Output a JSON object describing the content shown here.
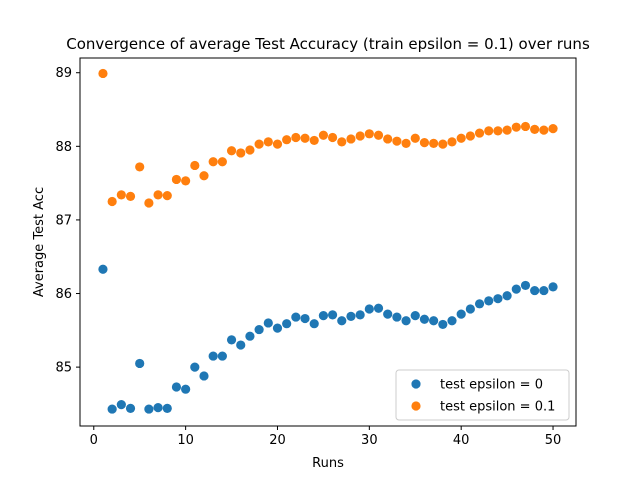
{
  "chart_data": {
    "type": "scatter",
    "title": "Convergence of average Test Accuracy (train epsilon = 0.1) over runs",
    "xlabel": "Runs",
    "ylabel": "Average Test Acc",
    "xlim": [
      -1.5,
      52.5
    ],
    "ylim": [
      84.2,
      89.2
    ],
    "xticks": [
      0,
      10,
      20,
      30,
      40,
      50
    ],
    "yticks": [
      85,
      86,
      87,
      88,
      89
    ],
    "grid": false,
    "legend_position": "lower-right",
    "x": [
      1,
      2,
      3,
      4,
      5,
      6,
      7,
      8,
      9,
      10,
      11,
      12,
      13,
      14,
      15,
      16,
      17,
      18,
      19,
      20,
      21,
      22,
      23,
      24,
      25,
      26,
      27,
      28,
      29,
      30,
      31,
      32,
      33,
      34,
      35,
      36,
      37,
      38,
      39,
      40,
      41,
      42,
      43,
      44,
      45,
      46,
      47,
      48,
      49,
      50
    ],
    "series": [
      {
        "name": "test epsilon = 0",
        "color": "#1f77b4",
        "values": [
          86.33,
          84.43,
          84.49,
          84.44,
          85.05,
          84.43,
          84.45,
          84.44,
          84.73,
          84.7,
          85.0,
          84.88,
          85.15,
          85.15,
          85.37,
          85.3,
          85.42,
          85.51,
          85.6,
          85.53,
          85.59,
          85.68,
          85.66,
          85.59,
          85.7,
          85.71,
          85.63,
          85.69,
          85.71,
          85.79,
          85.8,
          85.72,
          85.68,
          85.63,
          85.7,
          85.65,
          85.63,
          85.58,
          85.63,
          85.72,
          85.79,
          85.86,
          85.9,
          85.93,
          85.97,
          86.06,
          86.11,
          86.04,
          86.04,
          86.09
        ]
      },
      {
        "name": "test epsilon = 0.1",
        "color": "#ff7f0e",
        "values": [
          88.99,
          87.25,
          87.34,
          87.32,
          87.72,
          87.23,
          87.34,
          87.33,
          87.55,
          87.53,
          87.74,
          87.6,
          87.79,
          87.79,
          87.94,
          87.91,
          87.95,
          88.03,
          88.06,
          88.03,
          88.09,
          88.12,
          88.11,
          88.08,
          88.15,
          88.12,
          88.06,
          88.1,
          88.14,
          88.17,
          88.15,
          88.1,
          88.07,
          88.04,
          88.11,
          88.05,
          88.04,
          88.03,
          88.06,
          88.11,
          88.14,
          88.18,
          88.21,
          88.21,
          88.22,
          88.26,
          88.27,
          88.23,
          88.22,
          88.24
        ]
      }
    ]
  }
}
